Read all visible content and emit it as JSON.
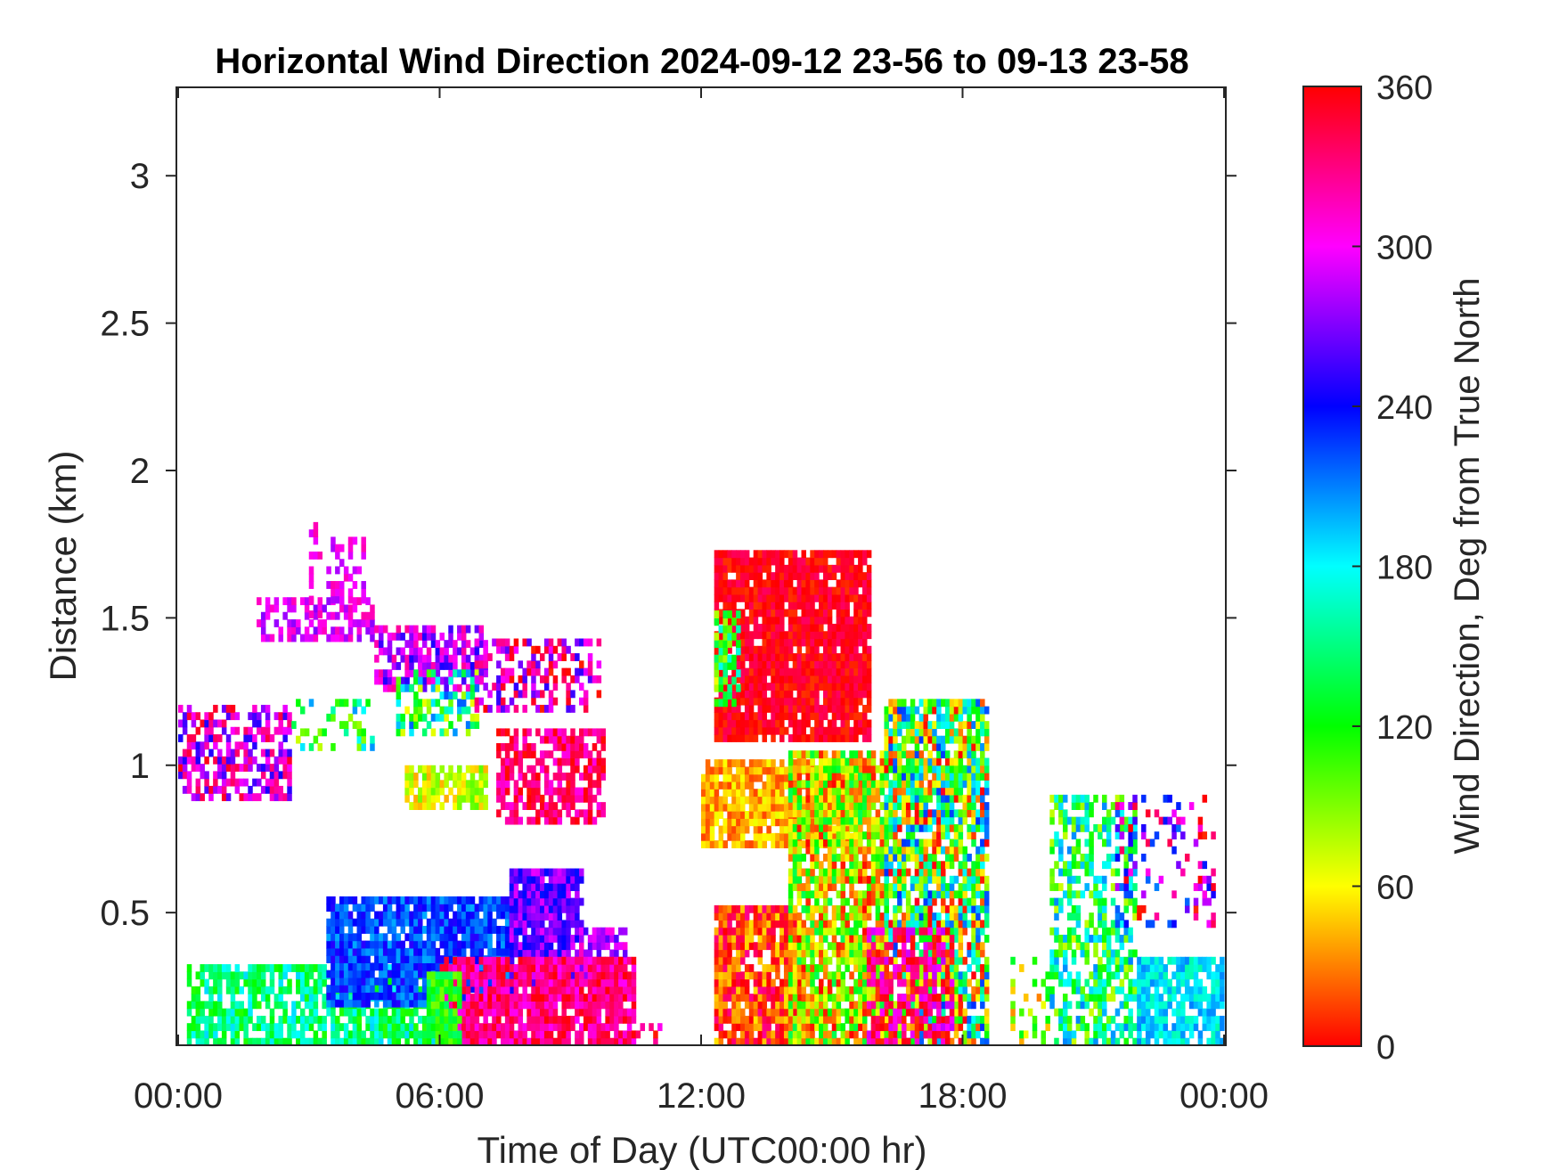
{
  "chart_data": {
    "type": "heatmap",
    "title": "Horizontal Wind Direction 2024-09-12 23-56 to 09-13 23-58",
    "xlabel": "Time of Day (UTC00:00 hr)",
    "ylabel": "Distance (km)",
    "x_unit": "hours",
    "xlim": [
      0,
      24
    ],
    "ylim": [
      0.05,
      3.3
    ],
    "xtick_values": [
      0,
      6,
      12,
      18,
      24
    ],
    "xtick_labels": [
      "00:00",
      "06:00",
      "12:00",
      "18:00",
      "00:00"
    ],
    "ytick_values": [
      0.5,
      1,
      1.5,
      2,
      2.5,
      3
    ],
    "ytick_labels": [
      "0.5",
      "1",
      "1.5",
      "2",
      "2.5",
      "3"
    ],
    "colorbar": {
      "label": "Wind Direction, Deg from True North",
      "range": [
        0,
        360
      ],
      "tick_values": [
        0,
        60,
        120,
        180,
        240,
        300,
        360
      ],
      "tick_labels": [
        "0",
        "60",
        "120",
        "180",
        "240",
        "300",
        "360"
      ],
      "colormap": [
        "#ff0000",
        "#ffff00",
        "#00ff00",
        "#00ffff",
        "#0000ff",
        "#ff00ff",
        "#ff0000"
      ]
    },
    "grid": false,
    "legend": "none",
    "regions": [
      {
        "t0": 0.2,
        "t1": 6.0,
        "h0": 0.05,
        "h1": 0.32,
        "dir": 150,
        "spread": 40,
        "density": 0.75
      },
      {
        "t0": 3.4,
        "t1": 7.6,
        "h0": 0.18,
        "h1": 0.55,
        "dir": 225,
        "spread": 25,
        "density": 0.9
      },
      {
        "t0": 7.6,
        "t1": 9.2,
        "h0": 0.25,
        "h1": 0.63,
        "dir": 265,
        "spread": 30,
        "density": 0.9
      },
      {
        "t0": 9.2,
        "t1": 10.2,
        "h0": 0.2,
        "h1": 0.45,
        "dir": 285,
        "spread": 30,
        "density": 0.75
      },
      {
        "t0": 6.0,
        "t1": 10.4,
        "h0": 0.05,
        "h1": 0.35,
        "dir": 330,
        "spread": 30,
        "density": 0.9
      },
      {
        "t0": 5.7,
        "t1": 6.4,
        "h0": 0.05,
        "h1": 0.3,
        "dir": 120,
        "spread": 30,
        "density": 0.8
      },
      {
        "t0": 10.4,
        "t1": 11.0,
        "h0": 0.05,
        "h1": 0.12,
        "dir": 330,
        "spread": 40,
        "density": 0.35
      },
      {
        "t0": 0.0,
        "t1": 2.6,
        "h0": 0.88,
        "h1": 1.2,
        "dir": 300,
        "spread": 55,
        "density": 0.6
      },
      {
        "t0": 2.6,
        "t1": 4.4,
        "h0": 1.05,
        "h1": 1.2,
        "dir": 140,
        "spread": 70,
        "density": 0.3
      },
      {
        "t0": 1.8,
        "t1": 4.5,
        "h0": 1.42,
        "h1": 1.55,
        "dir": 295,
        "spread": 25,
        "density": 0.6
      },
      {
        "t0": 3.4,
        "t1": 4.2,
        "h0": 1.55,
        "h1": 1.75,
        "dir": 300,
        "spread": 20,
        "density": 0.45
      },
      {
        "t0": 3.0,
        "t1": 3.3,
        "h0": 1.5,
        "h1": 1.82,
        "dir": 305,
        "spread": 15,
        "density": 0.35
      },
      {
        "t0": 4.5,
        "t1": 7.0,
        "h0": 1.25,
        "h1": 1.45,
        "dir": 285,
        "spread": 40,
        "density": 0.6
      },
      {
        "t0": 5.0,
        "t1": 6.8,
        "h0": 1.1,
        "h1": 1.3,
        "dir": 140,
        "spread": 80,
        "density": 0.5
      },
      {
        "t0": 6.8,
        "t1": 9.6,
        "h0": 1.18,
        "h1": 1.42,
        "dir": 310,
        "spread": 60,
        "density": 0.45
      },
      {
        "t0": 5.2,
        "t1": 7.0,
        "h0": 0.85,
        "h1": 1.0,
        "dir": 70,
        "spread": 30,
        "density": 0.75
      },
      {
        "t0": 7.3,
        "t1": 9.7,
        "h0": 0.8,
        "h1": 1.12,
        "dir": 335,
        "spread": 30,
        "density": 0.7
      },
      {
        "t0": 12.3,
        "t1": 15.8,
        "h0": 1.08,
        "h1": 1.72,
        "dir": 355,
        "spread": 18,
        "density": 0.9
      },
      {
        "t0": 12.3,
        "t1": 12.8,
        "h0": 1.2,
        "h1": 1.5,
        "dir": 120,
        "spread": 60,
        "density": 0.6
      },
      {
        "t0": 12.0,
        "t1": 15.6,
        "h0": 0.72,
        "h1": 1.02,
        "dir": 40,
        "spread": 25,
        "density": 0.9
      },
      {
        "t0": 12.3,
        "t1": 14.2,
        "h0": 0.05,
        "h1": 0.52,
        "dir": 10,
        "spread": 45,
        "density": 0.85
      },
      {
        "t0": 14.0,
        "t1": 16.2,
        "h0": 0.05,
        "h1": 1.05,
        "dir": 70,
        "spread": 70,
        "density": 0.85
      },
      {
        "t0": 16.2,
        "t1": 18.6,
        "h0": 0.05,
        "h1": 1.22,
        "dir": 110,
        "spread": 120,
        "density": 0.8
      },
      {
        "t0": 15.8,
        "t1": 17.8,
        "h0": 0.05,
        "h1": 0.45,
        "dir": 330,
        "spread": 45,
        "density": 0.6
      },
      {
        "t0": 19.1,
        "t1": 20.0,
        "h0": 0.05,
        "h1": 0.35,
        "dir": 80,
        "spread": 50,
        "density": 0.25
      },
      {
        "t0": 20.0,
        "t1": 22.0,
        "h0": 0.05,
        "h1": 0.9,
        "dir": 140,
        "spread": 70,
        "density": 0.55
      },
      {
        "t0": 22.0,
        "t1": 24.0,
        "h0": 0.05,
        "h1": 0.35,
        "dir": 185,
        "spread": 25,
        "density": 0.85
      },
      {
        "t0": 21.5,
        "t1": 23.8,
        "h0": 0.45,
        "h1": 0.9,
        "dir": 290,
        "spread": 80,
        "density": 0.25
      }
    ]
  }
}
